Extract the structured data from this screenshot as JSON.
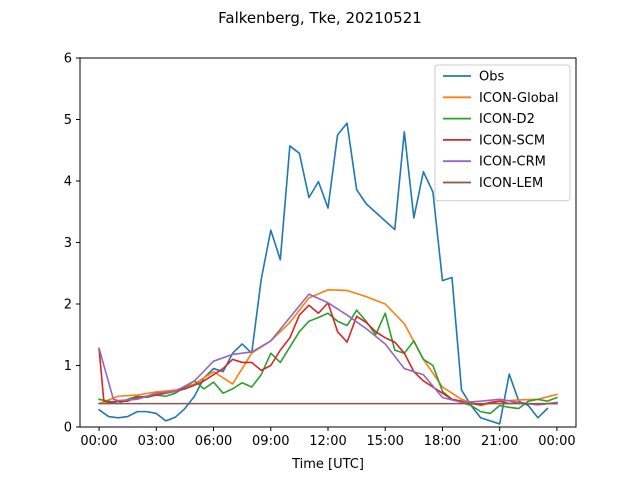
{
  "chart_data": {
    "type": "line",
    "title": "Falkenberg, Tke, 20210521",
    "xlabel": "Time [UTC]",
    "ylabel": "",
    "xlim": [
      -1.0,
      25.0
    ],
    "ylim": [
      0,
      6
    ],
    "xticks": [
      0,
      3,
      6,
      9,
      12,
      15,
      18,
      21,
      24
    ],
    "xtick_labels": [
      "00:00",
      "03:00",
      "06:00",
      "09:00",
      "12:00",
      "15:00",
      "18:00",
      "21:00",
      "00:00"
    ],
    "yticks": [
      0,
      1,
      2,
      3,
      4,
      5,
      6
    ],
    "ytick_labels": [
      "0",
      "1",
      "2",
      "3",
      "4",
      "5",
      "6"
    ],
    "grid": false,
    "legend_position": "top-right",
    "series": [
      {
        "name": "Obs",
        "color": "#1f77b4",
        "x": [
          0,
          0.5,
          1,
          1.5,
          2,
          2.5,
          3,
          3.5,
          4,
          4.5,
          5,
          5.5,
          6,
          6.5,
          7,
          7.5,
          8,
          8.5,
          9,
          9.5,
          10,
          10.5,
          11,
          11.5,
          12,
          12.5,
          13,
          13.5,
          14,
          14.5,
          15,
          15.5,
          16,
          16.5,
          17,
          17.5,
          18,
          18.5,
          19,
          19.5,
          20,
          20.5,
          21,
          21.5,
          22,
          22.5,
          23,
          23.5
        ],
        "y": [
          0.28,
          0.17,
          0.15,
          0.17,
          0.25,
          0.25,
          0.22,
          0.1,
          0.16,
          0.3,
          0.5,
          0.8,
          0.95,
          0.9,
          1.2,
          1.35,
          1.2,
          2.4,
          3.2,
          2.72,
          4.57,
          4.45,
          3.73,
          3.99,
          3.56,
          4.75,
          4.94,
          3.86,
          3.63,
          3.49,
          3.35,
          3.21,
          4.8,
          3.4,
          4.15,
          3.82,
          2.38,
          2.43,
          0.6,
          0.35,
          0.15,
          0.1,
          0.05,
          0.86,
          0.42,
          0.35,
          0.15,
          0.3
        ]
      },
      {
        "name": "ICON-Global",
        "color": "#ff7f0e",
        "x": [
          0,
          1,
          2,
          3,
          4,
          5,
          6,
          7,
          8,
          9,
          10,
          11,
          12,
          13,
          14,
          15,
          16,
          17,
          18,
          19,
          20,
          21,
          22,
          23,
          24
        ],
        "y": [
          0.38,
          0.5,
          0.52,
          0.57,
          0.6,
          0.7,
          0.9,
          0.7,
          1.2,
          1.4,
          1.7,
          2.1,
          2.23,
          2.22,
          2.12,
          2.0,
          1.68,
          1.1,
          0.65,
          0.45,
          0.35,
          0.42,
          0.44,
          0.45,
          0.53
        ]
      },
      {
        "name": "ICON-D2",
        "color": "#2ca02c",
        "x": [
          0,
          0.5,
          1,
          1.5,
          2,
          2.5,
          3,
          3.5,
          4,
          4.5,
          5,
          5.5,
          6,
          6.5,
          7,
          7.5,
          8,
          8.5,
          9,
          9.5,
          10,
          10.5,
          11,
          11.5,
          12,
          12.5,
          13,
          13.5,
          14,
          14.5,
          15,
          15.5,
          16,
          16.5,
          17,
          17.5,
          18,
          18.5,
          19,
          19.5,
          20,
          20.5,
          21,
          21.5,
          22,
          22.5,
          23,
          23.5,
          24
        ],
        "y": [
          0.45,
          0.42,
          0.38,
          0.45,
          0.5,
          0.48,
          0.52,
          0.5,
          0.55,
          0.65,
          0.75,
          0.62,
          0.73,
          0.55,
          0.62,
          0.72,
          0.65,
          0.85,
          1.2,
          1.05,
          1.3,
          1.55,
          1.72,
          1.78,
          1.85,
          1.72,
          1.65,
          1.9,
          1.72,
          1.5,
          1.85,
          1.25,
          1.2,
          1.4,
          1.1,
          1.0,
          0.58,
          0.45,
          0.4,
          0.35,
          0.25,
          0.22,
          0.35,
          0.32,
          0.3,
          0.42,
          0.45,
          0.42,
          0.48
        ]
      },
      {
        "name": "ICON-SCM",
        "color": "#d62728",
        "x": [
          0,
          0.25,
          0.5,
          1,
          1.5,
          2,
          2.5,
          3,
          3.5,
          4,
          4.5,
          5,
          5.5,
          6,
          6.5,
          7,
          7.5,
          8,
          8.5,
          9,
          9.5,
          10,
          10.5,
          11,
          11.5,
          12,
          12.5,
          13,
          13.5,
          14,
          14.5,
          15,
          15.5,
          16,
          16.5,
          17,
          17.5,
          18,
          18.5,
          19,
          19.5,
          20,
          20.5,
          21,
          21.5,
          22,
          22.5,
          23,
          23.5,
          24
        ],
        "y": [
          1.27,
          0.42,
          0.4,
          0.42,
          0.42,
          0.48,
          0.5,
          0.52,
          0.55,
          0.58,
          0.62,
          0.68,
          0.75,
          0.85,
          0.95,
          1.1,
          1.05,
          1.05,
          0.92,
          1.0,
          1.25,
          1.45,
          1.82,
          1.98,
          1.85,
          2.02,
          1.55,
          1.38,
          1.8,
          1.7,
          1.55,
          1.45,
          1.38,
          1.2,
          0.9,
          0.75,
          0.65,
          0.55,
          0.45,
          0.42,
          0.38,
          0.36,
          0.4,
          0.42,
          0.38,
          0.4,
          0.38,
          0.36,
          0.38,
          0.38
        ]
      },
      {
        "name": "ICON-CRM",
        "color": "#9467bd",
        "x": [
          0,
          0.75,
          1,
          2,
          3,
          4,
          5,
          6,
          7,
          8,
          9,
          10,
          11,
          12,
          13,
          14,
          15,
          16,
          17,
          18,
          19,
          20,
          21,
          22,
          23,
          24
        ],
        "y": [
          1.28,
          0.45,
          0.43,
          0.45,
          0.55,
          0.58,
          0.75,
          1.07,
          1.18,
          1.22,
          1.4,
          1.78,
          2.16,
          2.02,
          1.82,
          1.6,
          1.35,
          0.95,
          0.85,
          0.48,
          0.4,
          0.42,
          0.45,
          0.4,
          0.36,
          0.4
        ]
      },
      {
        "name": "ICON-LEM",
        "color": "#8c564b",
        "x": [
          0,
          24
        ],
        "y": [
          0.38,
          0.38
        ]
      }
    ]
  }
}
